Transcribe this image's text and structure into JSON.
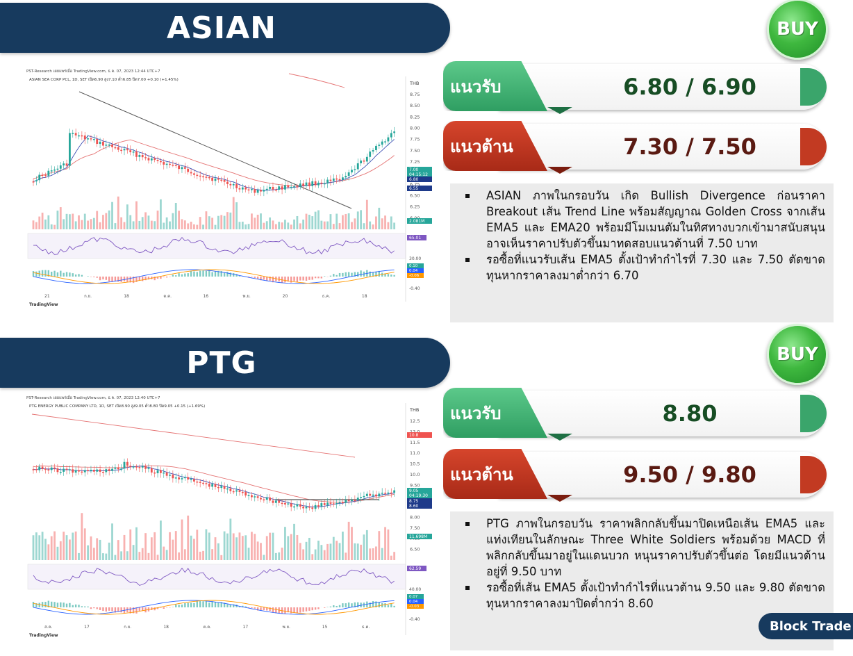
{
  "colors": {
    "navy": "#173a5e",
    "support_green": "#2f9e62",
    "resistance_red": "#b9321c",
    "buy_green": "#3fb83f",
    "candle_up": "#26a69a",
    "candle_down": "#ef5350"
  },
  "stocks": [
    {
      "symbol": "ASIAN",
      "signal": "BUY",
      "support_label": "แนวรับ",
      "support_value": "6.80 / 6.90",
      "resistance_label": "แนวต้าน",
      "resistance_value": "7.30 / 7.50",
      "analysis": [
        "ASIAN ภาพในกรอบวัน เกิด Bullish Divergence ก่อนราคา Breakout เส้น Trend Line พร้อมสัญญาณ Golden Cross จากเส้น EMA5 และ EMA20 พร้อมมีโมเมนตัมในทิศทางบวกเข้ามาสนับสนุน อาจเห็นราคาปรับตัวขึ้นมาทดสอบแนวต้านที่ 7.50 บาท",
        "รอซื้อที่แนวรับเส้น EMA5 ตั้งเป้าทำกำไรที่ 7.30 และ 7.50 ตัดขาดทุนหากราคาลงมาต่ำกว่า 6.70"
      ],
      "chart": {
        "header": "PST-Research เผยแพร่เมื่อ TradingView.com, ธ.ค. 07, 2023 12:44 UTC+7",
        "legend": "ASIAN SEA CORP PCL, 1D, SET  เปิด6.90  สูง7.10  ต่ำ6.85  ปิด7.00  +0.10 (+1.45%)",
        "currency": "THB",
        "price_ticks": [
          "8.75",
          "8.50",
          "8.25",
          "8.00",
          "7.75",
          "7.50",
          "7.25",
          "7.00",
          "6.75",
          "6.50",
          "6.25",
          "6.00"
        ],
        "price_tags": [
          {
            "text": "7.00",
            "color": "#26a69a"
          },
          {
            "text": "04:15:12",
            "color": "#26a69a"
          },
          {
            "text": "6.80",
            "color": "#1e3a8a"
          },
          {
            "text": "6.55",
            "color": "#1e3a8a"
          },
          {
            "text": "2.081M",
            "color": "#26a69a"
          }
        ],
        "rsi_value": "65.01",
        "rsi_low": "30.00",
        "macd_values": [
          "0.10",
          "0.04",
          "-0.06"
        ],
        "macd_low": "-0.40",
        "time_ticks": [
          "21",
          "ก.ย.",
          "18",
          "ต.ค.",
          "16",
          "พ.ย.",
          "20",
          "ธ.ค.",
          "18"
        ],
        "footer": "TradingView"
      }
    },
    {
      "symbol": "PTG",
      "signal": "BUY",
      "support_label": "แนวรับ",
      "support_value": "8.80",
      "resistance_label": "แนวต้าน",
      "resistance_value": "9.50 / 9.80",
      "analysis": [
        "PTG ภาพในกรอบวัน ราคาพลิกกลับขึ้นมาปิดเหนือเส้น EMA5 และแท่งเทียนในลักษณะ Three White Soldiers พร้อมด้วย MACD ที่พลิกกลับขึ้นมาอยู่ในแดนบวก หนุนราคาปรับตัวขึ้นต่อ โดยมีแนวต้านอยู่ที่ 9.50 บาท",
        "รอซื้อที่เส้น EMA5 ตั้งเป้าทำกำไรที่แนวต้าน 9.50 และ 9.80 ตัดขาดทุนหากราคาลงมาปิดต่ำกว่า 8.60"
      ],
      "chart": {
        "header": "PST-Research เผยแพร่เมื่อ TradingView.com, ธ.ค. 07, 2023 12:40 UTC+7",
        "legend": "PTG ENERGY PUBLIC COMPANY LTD, 1D, SET  เปิด8.90  สูง9.05  ต่ำ8.80  ปิด9.05  +0.15 (+1.69%)",
        "currency": "THB",
        "price_ticks": [
          "12.5",
          "12.0",
          "11.5",
          "11.0",
          "10.5",
          "10.0",
          "9.50",
          "9.00",
          "8.50",
          "8.00",
          "7.50",
          "7.00",
          "6.50"
        ],
        "price_tags": [
          {
            "text": "10.8",
            "color": "#ef5350"
          },
          {
            "text": "9.05",
            "color": "#26a69a"
          },
          {
            "text": "04:19:30",
            "color": "#26a69a"
          },
          {
            "text": "8.75",
            "color": "#1e3a8a"
          },
          {
            "text": "8.60",
            "color": "#1e3a8a"
          },
          {
            "text": "11.698M",
            "color": "#26a69a"
          }
        ],
        "rsi_value": "62.59",
        "rsi_low": "40.00",
        "macd_values": [
          "0.07",
          "0.04",
          "-0.03"
        ],
        "macd_low": "-0.40",
        "time_ticks": [
          "ส.ค.",
          "17",
          "ก.ย.",
          "18",
          "ต.ค.",
          "17",
          "พ.ย.",
          "15",
          "ธ.ค."
        ],
        "footer": "TradingView"
      }
    }
  ],
  "footer_badge": "Block Trade"
}
